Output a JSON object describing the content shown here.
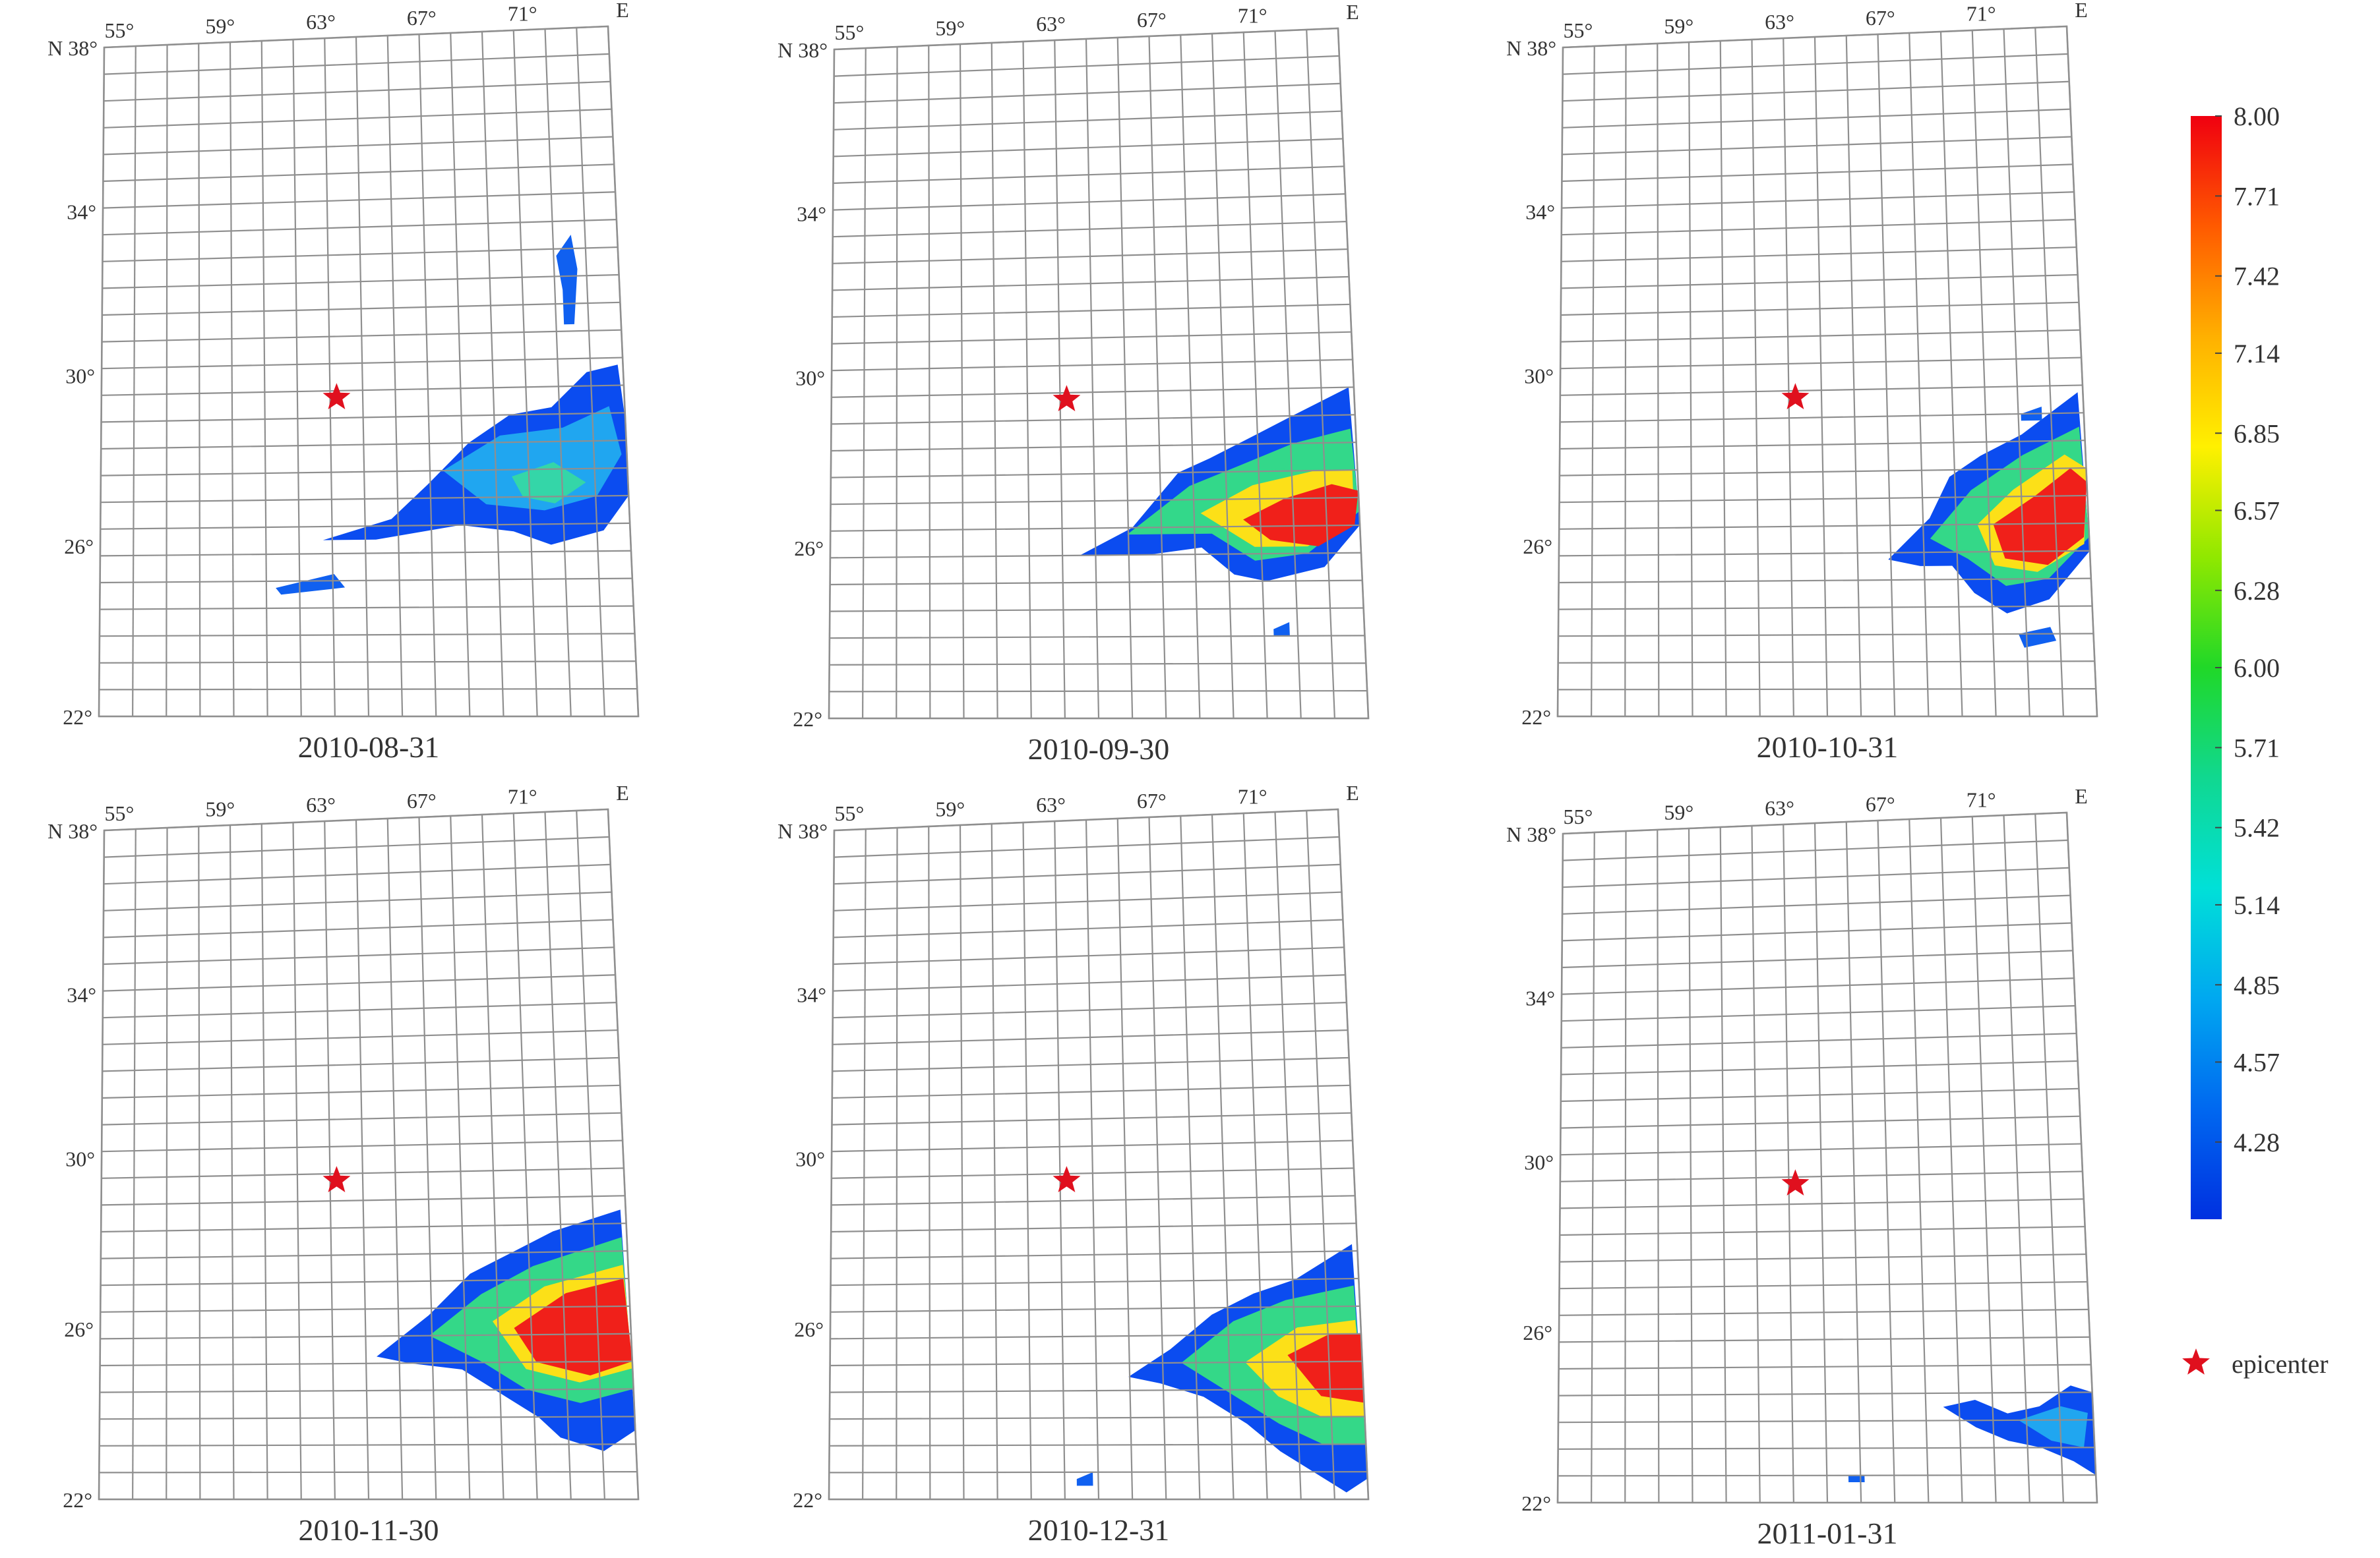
{
  "lat_labels": [
    "38°",
    "34°",
    "30°",
    "26°",
    "22°"
  ],
  "lat_prefix": "N",
  "lon_labels": [
    "55°",
    "59°",
    "63°",
    "67°",
    "71°"
  ],
  "lon_suffix": "E",
  "maps": [
    {
      "date": "2010-08-31"
    },
    {
      "date": "2010-09-30"
    },
    {
      "date": "2010-10-31"
    },
    {
      "date": "2010-11-30"
    },
    {
      "date": "2010-12-31"
    },
    {
      "date": "2011-01-31"
    }
  ],
  "colorbar": {
    "labels": [
      "8.00",
      "7.71",
      "7.42",
      "7.14",
      "6.85",
      "6.57",
      "6.28",
      "6.00",
      "5.71",
      "5.42",
      "5.14",
      "4.85",
      "4.57",
      "4.28"
    ],
    "min": 4.0,
    "max": 8.0,
    "colors": [
      "#0033e6",
      "#0077f0",
      "#00b4f0",
      "#00e0c8",
      "#10d878",
      "#40e020",
      "#c8f000",
      "#ffd800",
      "#ff9400",
      "#ff4a00",
      "#f00010"
    ]
  },
  "legend": {
    "symbol": "star",
    "label": "epicenter",
    "color": "#e0101e"
  }
}
